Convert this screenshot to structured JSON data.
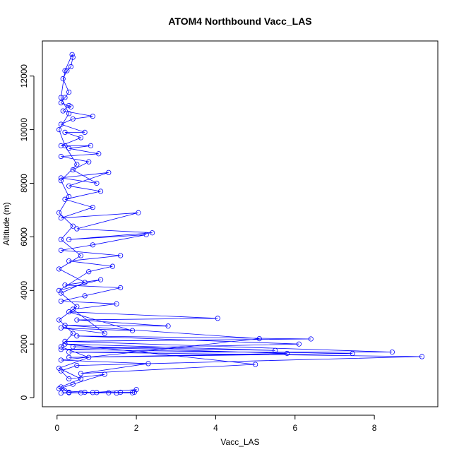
{
  "chart_data": {
    "type": "line",
    "title": "ATOM4 Northbound Vacc_LAS",
    "x_label": "Vacc_LAS",
    "y_label": "Altitude (m)",
    "color": "#0000ff",
    "x": [
      0.1,
      0.3,
      0.6,
      1.0,
      1.6,
      1.95,
      2.0,
      0.9,
      0.2,
      0.05,
      0.4,
      1.2,
      0.3,
      0.1,
      0.5,
      9.2,
      0.3,
      8.45,
      0.2,
      6.4,
      0.5,
      6.1,
      0.1,
      7.45,
      0.3,
      5.8,
      0.4,
      5.5,
      0.2,
      5.0,
      0.6,
      2.3,
      0.1,
      5.1,
      0.2,
      2.8,
      0.5,
      4.05,
      0.3,
      1.9,
      0.1,
      1.2,
      0.4,
      1.5,
      0.1,
      0.7,
      1.6,
      0.2,
      1.1,
      0.05,
      0.8,
      1.4,
      0.3,
      1.6,
      0.1,
      0.9,
      2.25,
      0.3,
      2.4,
      0.5,
      2.05,
      0.1,
      0.9,
      0.2,
      1.1,
      0.3,
      1.3,
      0.1,
      1.0,
      0.4,
      0.8,
      0.1,
      1.05,
      0.3,
      0.85,
      0.1,
      0.6,
      0.2,
      0.7,
      0.1,
      0.4,
      0.9,
      0.15,
      0.3,
      0.35,
      0.1,
      0.2,
      0.3,
      0.15,
      0.25,
      0.35,
      0.4,
      0.38,
      0.2,
      0.1,
      0.3,
      0.05,
      0.2,
      0.5,
      0.1,
      0.3,
      0.05,
      0.4,
      0.1,
      0.6,
      0.05,
      0.7,
      0.1,
      0.5,
      0.05,
      0.4,
      0.1,
      0.8,
      0.05,
      0.6,
      0.1,
      0.3,
      1.3,
      0.7,
      1.5,
      1.9
    ],
    "values": [
      170,
      200,
      180,
      190,
      200,
      200,
      300,
      190,
      250,
      330,
      500,
      870,
      700,
      1000,
      1200,
      1530,
      1700,
      1700,
      2100,
      2190,
      2300,
      2000,
      1800,
      1650,
      1500,
      1650,
      1900,
      1760,
      2000,
      1240,
      900,
      1270,
      1400,
      2200,
      2700,
      2670,
      2900,
      2960,
      3200,
      2500,
      2600,
      2400,
      3300,
      3500,
      3600,
      3800,
      4100,
      4200,
      4400,
      4000,
      4700,
      4900,
      5100,
      5300,
      5500,
      5700,
      6080,
      5900,
      6150,
      6300,
      6900,
      6700,
      7100,
      7400,
      7700,
      7900,
      8400,
      8200,
      8000,
      8500,
      8800,
      9000,
      9100,
      9300,
      9400,
      9400,
      9700,
      9900,
      9900,
      10200,
      10400,
      10500,
      10700,
      10900,
      10850,
      11000,
      11200,
      11400,
      11900,
      12200,
      12350,
      12700,
      12800,
      12200,
      11200,
      10600,
      10000,
      9400,
      8700,
      8100,
      7500,
      6900,
      6400,
      5900,
      5300,
      4800,
      4300,
      3900,
      3400,
      2900,
      2400,
      1900,
      1500,
      1100,
      700,
      400,
      180,
      180,
      200,
      170,
      180
    ],
    "xlim": [
      -0.37,
      9.6
    ],
    "ylim": [
      -340,
      13310
    ],
    "xticks": [
      0,
      2,
      4,
      6,
      8
    ],
    "yticks": [
      0,
      2000,
      4000,
      6000,
      8000,
      10000,
      12000
    ]
  }
}
